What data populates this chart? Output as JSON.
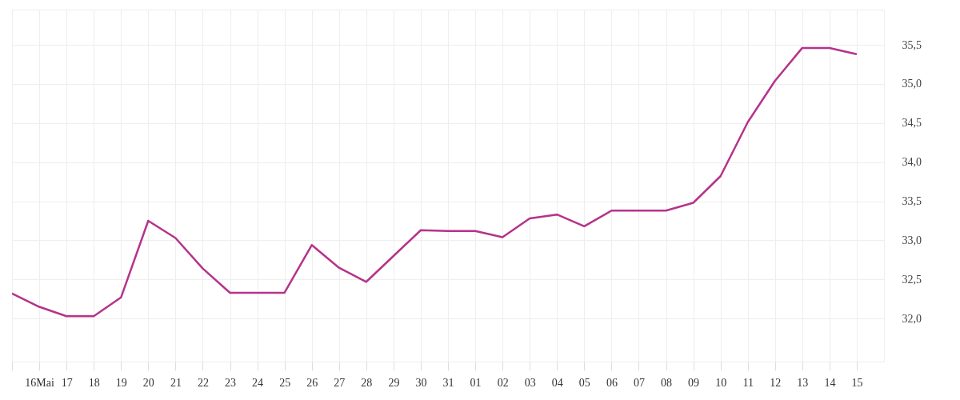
{
  "chart_data": {
    "type": "line",
    "x": [
      "--05-15",
      "--05-16",
      "--05-17",
      "--05-18",
      "--05-19",
      "--05-20",
      "--05-21",
      "--05-22",
      "--05-23",
      "--05-24",
      "--05-25",
      "--05-26",
      "--05-27",
      "--05-28",
      "--05-29",
      "--05-30",
      "--05-31",
      "--06-01",
      "--06-02",
      "--06-03",
      "--06-04",
      "--06-05",
      "--06-06",
      "--06-07",
      "--06-08",
      "--06-09",
      "--06-10",
      "--06-11",
      "--06-12",
      "--06-13",
      "--06-14",
      "--06-15"
    ],
    "series": [
      {
        "color": "#b5338a",
        "values": [
          32.32,
          32.15,
          32.03,
          32.03,
          32.27,
          33.25,
          33.03,
          32.64,
          32.33,
          32.33,
          32.33,
          32.94,
          32.65,
          32.47,
          32.8,
          33.13,
          33.12,
          33.12,
          33.04,
          33.28,
          33.33,
          33.18,
          33.38,
          33.38,
          33.38,
          33.48,
          33.82,
          34.51,
          35.04,
          35.46,
          35.46,
          35.38
        ]
      }
    ],
    "xlim": [
      "--05-15",
      "--06-16"
    ],
    "xticks": [
      {
        "value": "--05-15",
        "label": null
      },
      {
        "value": "--05-16",
        "label": "16Mai"
      },
      {
        "value": "--05-17",
        "label": "17"
      },
      {
        "value": "--05-18",
        "label": "18"
      },
      {
        "value": "--05-19",
        "label": "19"
      },
      {
        "value": "--05-20",
        "label": "20"
      },
      {
        "value": "--05-21",
        "label": "21"
      },
      {
        "value": "--05-22",
        "label": "22"
      },
      {
        "value": "--05-23",
        "label": "23"
      },
      {
        "value": "--05-24",
        "label": "24"
      },
      {
        "value": "--05-25",
        "label": "25"
      },
      {
        "value": "--05-26",
        "label": "26"
      },
      {
        "value": "--05-27",
        "label": "27"
      },
      {
        "value": "--05-28",
        "label": "28"
      },
      {
        "value": "--05-29",
        "label": "29"
      },
      {
        "value": "--05-30",
        "label": "30"
      },
      {
        "value": "--05-31",
        "label": "31"
      },
      {
        "value": "--06-01",
        "label": "01"
      },
      {
        "value": "--06-02",
        "label": "02"
      },
      {
        "value": "--06-03",
        "label": "03"
      },
      {
        "value": "--06-04",
        "label": "04"
      },
      {
        "value": "--06-05",
        "label": "05"
      },
      {
        "value": "--06-06",
        "label": "06"
      },
      {
        "value": "--06-07",
        "label": "07"
      },
      {
        "value": "--06-08",
        "label": "08"
      },
      {
        "value": "--06-09",
        "label": "09"
      },
      {
        "value": "--06-10",
        "label": "10"
      },
      {
        "value": "--06-11",
        "label": "11"
      },
      {
        "value": "--06-12",
        "label": "12"
      },
      {
        "value": "--06-13",
        "label": "13"
      },
      {
        "value": "--06-14",
        "label": "14"
      },
      {
        "value": "--06-15",
        "label": "15"
      }
    ],
    "ylim": [
      31.45,
      35.95
    ],
    "yticks": [
      {
        "value": 32,
        "label": "32,0"
      },
      {
        "value": 32.5,
        "label": "32,5"
      },
      {
        "value": 33,
        "label": "33,0"
      },
      {
        "value": 33.5,
        "label": "33,5"
      },
      {
        "value": 34,
        "label": "34,0"
      },
      {
        "value": 34.5,
        "label": "34,5"
      },
      {
        "value": 35,
        "label": "35,0"
      },
      {
        "value": 35.5,
        "label": "35,5"
      }
    ],
    "grid": true
  }
}
